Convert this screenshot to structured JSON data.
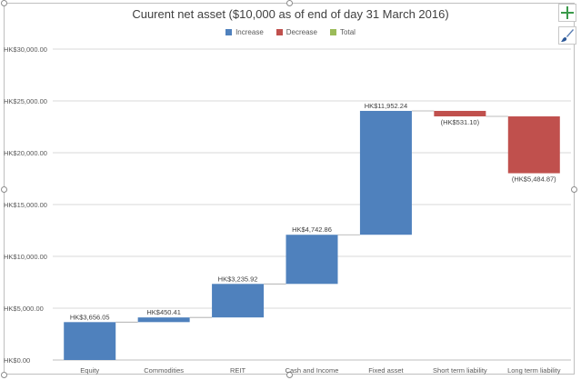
{
  "chart_data": {
    "type": "waterfall",
    "title": "Cuurent net asset  ($10,000 as of end of day 31 March 2016)",
    "legend": [
      {
        "name": "Increase",
        "color": "#4f81bd"
      },
      {
        "name": "Decrease",
        "color": "#c0504d"
      },
      {
        "name": "Total",
        "color": "#9bbb59"
      }
    ],
    "legend_position": "top",
    "ylim": [
      0,
      30000
    ],
    "yticks": [
      0,
      5000,
      10000,
      15000,
      20000,
      25000,
      30000
    ],
    "ytick_labels": [
      "HK$0.00",
      "HK$5,000.00",
      "HK$10,000.00",
      "HK$15,000.00",
      "HK$20,000.00",
      "HK$25,000.00",
      "HK$30,000.00"
    ],
    "grid": "horizontal",
    "categories": [
      "Equity",
      "Commodities",
      "REIT",
      "Cash and Income",
      "Fixed asset",
      "Short term liability",
      "Long term liability"
    ],
    "values": [
      3656.05,
      450.41,
      3235.92,
      4742.86,
      11952.24,
      -531.1,
      -5484.87
    ],
    "data_labels": [
      "HK$3,656.05",
      "HK$450.41",
      "HK$3,235.92",
      "HK$4,742.86",
      "HK$11,952.24",
      "(HK$531.10)",
      "(HK$5,484.87)"
    ]
  },
  "toolbar": {
    "add_element_icon": "plus-icon",
    "chart_styles_icon": "paintbrush-icon"
  }
}
